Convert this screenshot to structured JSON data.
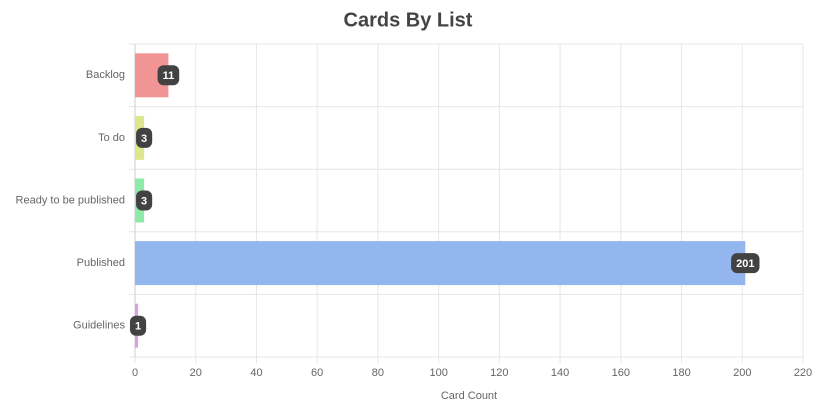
{
  "chart_data": {
    "type": "bar",
    "orientation": "horizontal",
    "title": "Cards By List",
    "x_label": "Card Count",
    "categories": [
      "Backlog",
      "To do",
      "Ready to be published",
      "Published",
      "Guidelines"
    ],
    "values": [
      11,
      3,
      3,
      201,
      1
    ],
    "colors": [
      "#f09494",
      "#dde88c",
      "#8eeaa8",
      "#94b6ee",
      "#d8a0e8"
    ],
    "xlim": [
      0,
      220
    ],
    "xticks": [
      0,
      20,
      40,
      60,
      80,
      100,
      120,
      140,
      160,
      180,
      200,
      220
    ],
    "grid": true,
    "data_labels": true
  }
}
